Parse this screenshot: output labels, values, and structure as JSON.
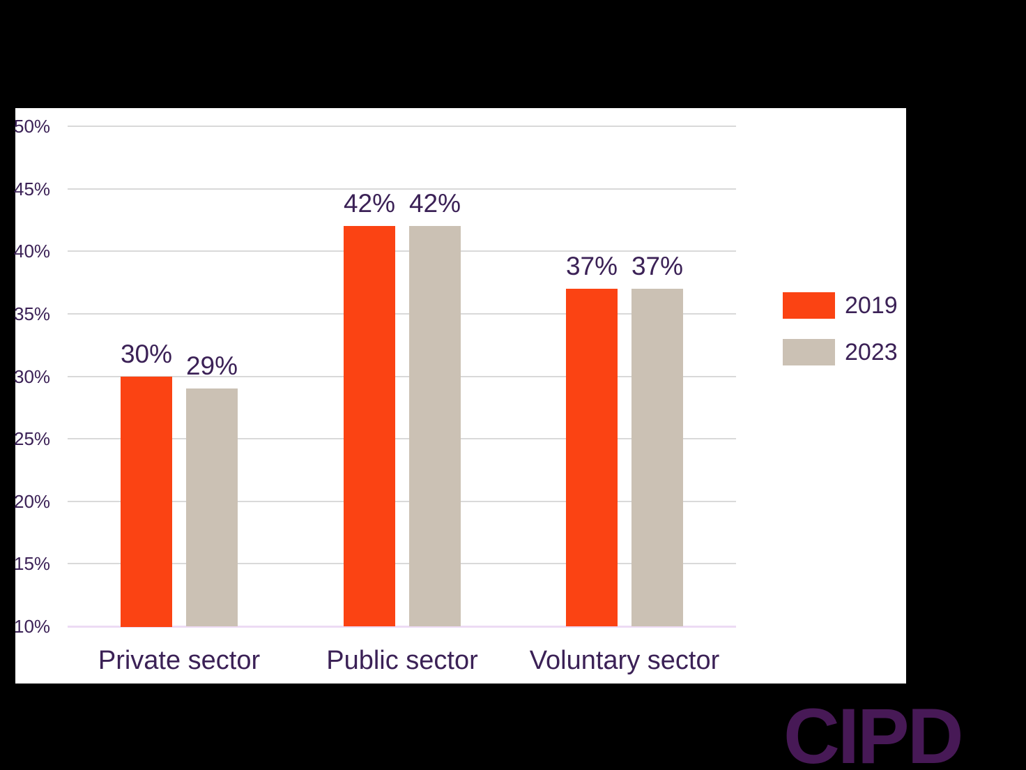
{
  "chart_data": {
    "type": "bar",
    "categories": [
      "Private sector",
      "Public sector",
      "Voluntary sector"
    ],
    "series": [
      {
        "name": "2019",
        "color": "#FB4313",
        "values": [
          30,
          42,
          37
        ]
      },
      {
        "name": "2023",
        "color": "#CBC1B4",
        "values": [
          29,
          42,
          37
        ]
      }
    ],
    "data_labels": [
      [
        "30%",
        "42%",
        "37%"
      ],
      [
        "29%",
        "42%",
        "37%"
      ]
    ],
    "ylim": [
      10,
      50
    ],
    "yticks": [
      50,
      45,
      40,
      35,
      30,
      25,
      20,
      15,
      10
    ],
    "ytick_labels": [
      "50%",
      "45%",
      "40%",
      "35%",
      "30%",
      "25%",
      "20%",
      "15%",
      "10%"
    ],
    "grid": true,
    "legend_position": "right"
  },
  "legend": {
    "items": [
      {
        "label": "2019",
        "color": "#FB4313"
      },
      {
        "label": "2023",
        "color": "#CBC1B4"
      }
    ]
  },
  "logo": {
    "text": "CIPD",
    "color": "#471956"
  },
  "style_colors": {
    "label_text": "#3B2156",
    "gridline": "#D9D9D9",
    "baseline": "#EDDBF4",
    "panel_background": "#FFFFFF",
    "canvas_background": "#000000"
  }
}
